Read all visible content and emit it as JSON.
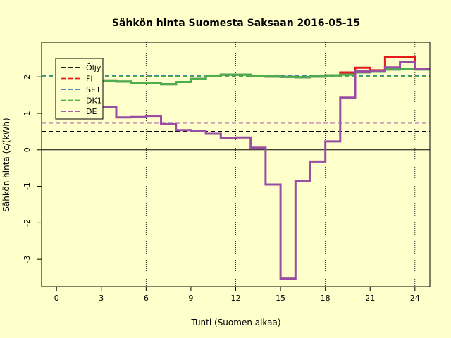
{
  "chart_data": {
    "type": "line",
    "title": "Sähkön hinta Suomesta Saksaan 2016-05-15",
    "xlabel": "Tunti (Suomen aikaa)",
    "ylabel": "Sähkön hinta (c/(kWh)",
    "xlim": [
      -1,
      25
    ],
    "ylim": [
      -3.75,
      2.95
    ],
    "x_ticks": [
      0,
      3,
      6,
      9,
      12,
      15,
      18,
      21,
      24
    ],
    "x_tick_labels": [
      "0",
      "3",
      "6",
      "9",
      "12",
      "15",
      "18",
      "21",
      "24"
    ],
    "y_ticks": [
      -3,
      -2,
      -1,
      0,
      1,
      2
    ],
    "y_tick_labels": [
      "-3",
      "-2",
      "-1",
      "0",
      "1",
      "2"
    ],
    "vertical_gridlines": [
      6,
      12,
      18,
      24
    ],
    "legend_position": "top-left",
    "legend": [
      {
        "name": "Öljy",
        "color": "#000000"
      },
      {
        "name": "FI",
        "color": "#e41a1c"
      },
      {
        "name": "SE1",
        "color": "#377eb8"
      },
      {
        "name": "DK1",
        "color": "#4daf4a"
      },
      {
        "name": "DE",
        "color": "#984ea3"
      }
    ],
    "reference_lines": [
      {
        "name": "Öljy",
        "y": 0.5,
        "color": "#000000"
      },
      {
        "name": "FI",
        "y": 2.03,
        "color": "#e41a1c"
      },
      {
        "name": "SE1",
        "y": 2.03,
        "color": "#377eb8"
      },
      {
        "name": "DK1",
        "y": 2.01,
        "color": "#4daf4a"
      },
      {
        "name": "DE",
        "y": 0.74,
        "color": "#984ea3"
      }
    ],
    "hours": [
      0,
      1,
      2,
      3,
      4,
      5,
      6,
      7,
      8,
      9,
      10,
      11,
      12,
      13,
      14,
      15,
      16,
      17,
      18,
      19,
      20,
      21,
      22,
      23,
      24
    ],
    "series": [
      {
        "name": "FI",
        "color": "#e41a1c",
        "values": [
          1.98,
          1.94,
          1.92,
          1.9,
          1.87,
          1.82,
          1.82,
          1.8,
          1.86,
          1.94,
          2.03,
          2.06,
          2.06,
          2.03,
          2.01,
          2.0,
          1.99,
          2.01,
          2.04,
          2.12,
          2.25,
          2.18,
          2.54,
          2.54,
          2.22
        ]
      },
      {
        "name": "SE1",
        "color": "#377eb8",
        "values": [
          1.98,
          1.94,
          1.92,
          1.9,
          1.87,
          1.82,
          1.82,
          1.8,
          1.86,
          1.94,
          2.03,
          2.06,
          2.06,
          2.03,
          2.01,
          2.0,
          1.99,
          2.01,
          2.04,
          2.06,
          2.12,
          2.16,
          2.2,
          2.22,
          2.2
        ]
      },
      {
        "name": "DK1",
        "color": "#4daf4a",
        "values": [
          1.98,
          1.94,
          1.92,
          1.9,
          1.87,
          1.82,
          1.82,
          1.8,
          1.86,
          1.94,
          2.03,
          2.06,
          2.06,
          2.03,
          2.01,
          2.0,
          1.99,
          2.01,
          2.04,
          2.06,
          2.12,
          2.16,
          2.2,
          2.22,
          2.2
        ]
      },
      {
        "name": "DE",
        "color": "#984ea3",
        "values": [
          1.98,
          1.8,
          1.2,
          1.17,
          0.89,
          0.9,
          0.93,
          0.7,
          0.54,
          0.52,
          0.44,
          0.33,
          0.34,
          0.06,
          -0.95,
          -3.53,
          -0.85,
          -0.32,
          0.23,
          1.43,
          2.15,
          2.17,
          2.26,
          2.41,
          2.21
        ]
      }
    ]
  }
}
